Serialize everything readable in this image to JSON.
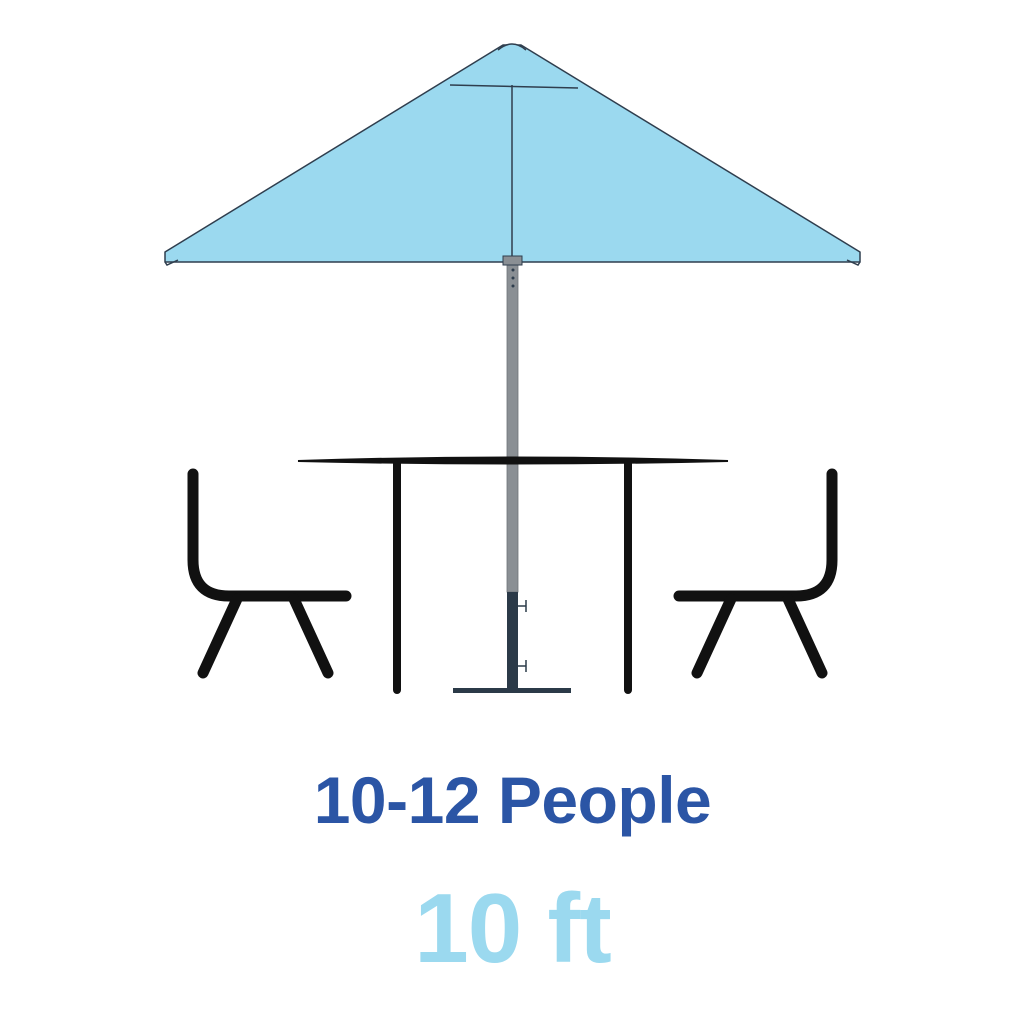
{
  "labels": {
    "capacity": "10-12 People",
    "size": "10 ft"
  },
  "colors": {
    "background": "#ffffff",
    "canopy": "#9bd9ef",
    "canopy_outline": "#2f3e4e",
    "pole": "#8a8f94",
    "pole_base": "#2b3a48",
    "furniture": "#111111",
    "capacity_text": "#2b55a5",
    "size_text": "#9bd9ef"
  },
  "icons": {
    "umbrella": "patio-umbrella-icon",
    "table": "table-icon",
    "left_chair": "chair-icon",
    "right_chair": "chair-icon"
  }
}
